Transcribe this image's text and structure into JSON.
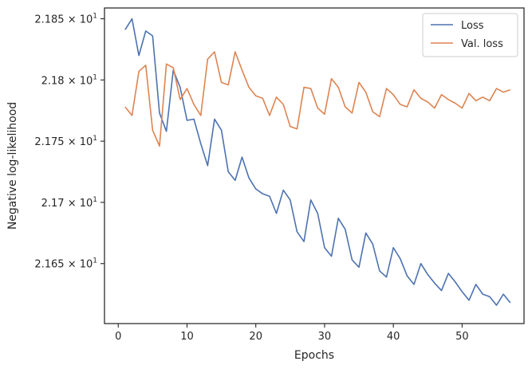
{
  "chart_data": {
    "type": "line",
    "xlabel": "Epochs",
    "ylabel": "Negative log-likelihood",
    "xlim": [
      -2,
      59
    ],
    "ylim": [
      21.601,
      21.8588
    ],
    "x_ticks": [
      0,
      10,
      20,
      30,
      40,
      50
    ],
    "x_tick_labels": [
      "0",
      "10",
      "20",
      "30",
      "40",
      "50"
    ],
    "y_ticks": [
      21.65,
      21.7,
      21.75,
      21.8,
      21.85
    ],
    "y_tick_labels": [
      {
        "mantissa": "2.165",
        "base": "10",
        "exp": "1"
      },
      {
        "mantissa": "2.17",
        "base": "10",
        "exp": "1"
      },
      {
        "mantissa": "2.175",
        "base": "10",
        "exp": "1"
      },
      {
        "mantissa": "2.18",
        "base": "10",
        "exp": "1"
      },
      {
        "mantissa": "2.185",
        "base": "10",
        "exp": "1"
      }
    ],
    "x": [
      1,
      2,
      3,
      4,
      5,
      6,
      7,
      8,
      9,
      10,
      11,
      12,
      13,
      14,
      15,
      16,
      17,
      18,
      19,
      20,
      21,
      22,
      23,
      24,
      25,
      26,
      27,
      28,
      29,
      30,
      31,
      32,
      33,
      34,
      35,
      36,
      37,
      38,
      39,
      40,
      41,
      42,
      43,
      44,
      45,
      46,
      47,
      48,
      49,
      50,
      51,
      52,
      53,
      54,
      55,
      56,
      57
    ],
    "series": [
      {
        "name": "Loss",
        "color": "#4c72b0",
        "values": [
          21.841,
          21.85,
          21.82,
          21.84,
          21.836,
          21.773,
          21.758,
          21.808,
          21.794,
          21.767,
          21.768,
          21.748,
          21.73,
          21.768,
          21.759,
          21.725,
          21.718,
          21.737,
          21.72,
          21.711,
          21.707,
          21.705,
          21.691,
          21.71,
          21.702,
          21.676,
          21.668,
          21.702,
          21.691,
          21.663,
          21.656,
          21.687,
          21.678,
          21.653,
          21.647,
          21.675,
          21.666,
          21.644,
          21.639,
          21.663,
          21.654,
          21.64,
          21.633,
          21.65,
          21.641,
          21.634,
          21.628,
          21.642,
          21.635,
          21.627,
          21.62,
          21.633,
          21.625,
          21.623,
          21.616,
          21.625,
          21.618
        ]
      },
      {
        "name": "Val. loss",
        "color": "#dd8452",
        "values": [
          21.778,
          21.771,
          21.807,
          21.812,
          21.759,
          21.746,
          21.813,
          21.81,
          21.784,
          21.793,
          21.78,
          21.771,
          21.817,
          21.823,
          21.798,
          21.796,
          21.823,
          21.808,
          21.794,
          21.787,
          21.785,
          21.771,
          21.786,
          21.78,
          21.762,
          21.76,
          21.794,
          21.793,
          21.777,
          21.772,
          21.801,
          21.794,
          21.778,
          21.773,
          21.798,
          21.79,
          21.774,
          21.77,
          21.793,
          21.788,
          21.78,
          21.778,
          21.792,
          21.785,
          21.782,
          21.777,
          21.788,
          21.784,
          21.781,
          21.777,
          21.789,
          21.783,
          21.786,
          21.783,
          21.793,
          21.79,
          21.792
        ]
      }
    ],
    "legend": "top-right",
    "grid": false
  }
}
